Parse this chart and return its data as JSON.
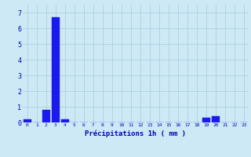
{
  "hours": [
    0,
    1,
    2,
    3,
    4,
    5,
    6,
    7,
    8,
    9,
    10,
    11,
    12,
    13,
    14,
    15,
    16,
    17,
    18,
    19,
    20,
    21,
    22,
    23
  ],
  "values": [
    0.2,
    0.0,
    0.8,
    6.7,
    0.2,
    0.0,
    0.0,
    0.0,
    0.0,
    0.0,
    0.0,
    0.0,
    0.0,
    0.0,
    0.0,
    0.0,
    0.0,
    0.0,
    0.0,
    0.3,
    0.4,
    0.0,
    0.0,
    0.0
  ],
  "bar_color": "#1a1aee",
  "bar_edge_color": "#1a1aee",
  "background_color": "#cce9f5",
  "grid_color": "#aaccdd",
  "xlabel": "Précipitations 1h ( mm )",
  "xlabel_color": "#0000bb",
  "tick_color": "#0000bb",
  "ylim": [
    0,
    7.5
  ],
  "yticks": [
    0,
    1,
    2,
    3,
    4,
    5,
    6,
    7
  ],
  "figsize": [
    3.2,
    2.0
  ],
  "dpi": 100
}
